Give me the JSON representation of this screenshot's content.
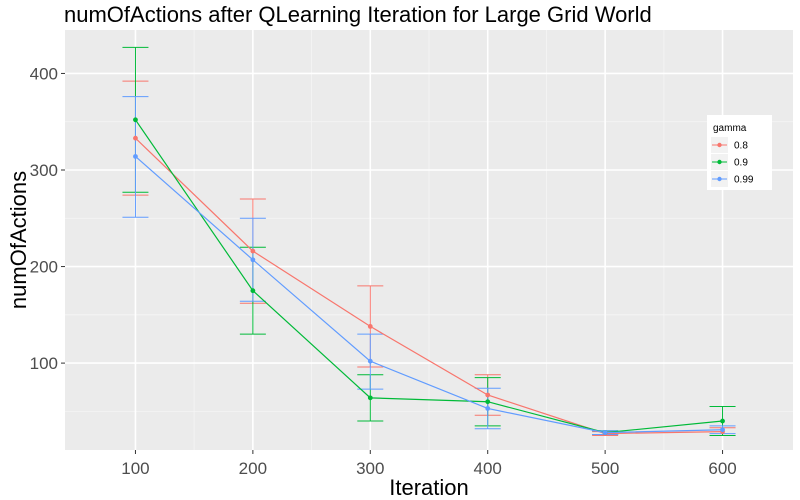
{
  "chart_data": {
    "type": "line",
    "title": "numOfActions after QLearning Iteration for Large Grid World",
    "xlabel": "Iteration",
    "ylabel": "numOfActions",
    "x": [
      100,
      200,
      300,
      400,
      500,
      600
    ],
    "xlim": [
      40,
      660
    ],
    "ylim": [
      10,
      445
    ],
    "xticks": [
      100,
      200,
      300,
      400,
      500,
      600
    ],
    "yticks": [
      100,
      200,
      300,
      400
    ],
    "x_tick_labels": [
      "100",
      "200",
      "300",
      "400",
      "500",
      "600"
    ],
    "y_tick_labels": [
      "100",
      "200",
      "300",
      "400"
    ],
    "grid": true,
    "legend_title": "gamma",
    "legend_position": "right",
    "error_bars": true,
    "series": [
      {
        "name": "0.8",
        "color": "#F8766D",
        "values": [
          333,
          216,
          138,
          67,
          27,
          29
        ],
        "lower": [
          274,
          162,
          96,
          46,
          25,
          25
        ],
        "upper": [
          392,
          270,
          180,
          88,
          29,
          33
        ]
      },
      {
        "name": "0.9",
        "color": "#00BA38",
        "values": [
          352,
          175,
          64,
          60,
          28,
          40
        ],
        "lower": [
          277,
          130,
          40,
          35,
          26,
          25
        ],
        "upper": [
          427,
          220,
          88,
          85,
          30,
          55
        ]
      },
      {
        "name": "0.99",
        "color": "#619CFF",
        "values": [
          314,
          207,
          102,
          53,
          28,
          31
        ],
        "lower": [
          251,
          164,
          73,
          32,
          26,
          27
        ],
        "upper": [
          376,
          250,
          130,
          74,
          30,
          35
        ]
      }
    ]
  }
}
